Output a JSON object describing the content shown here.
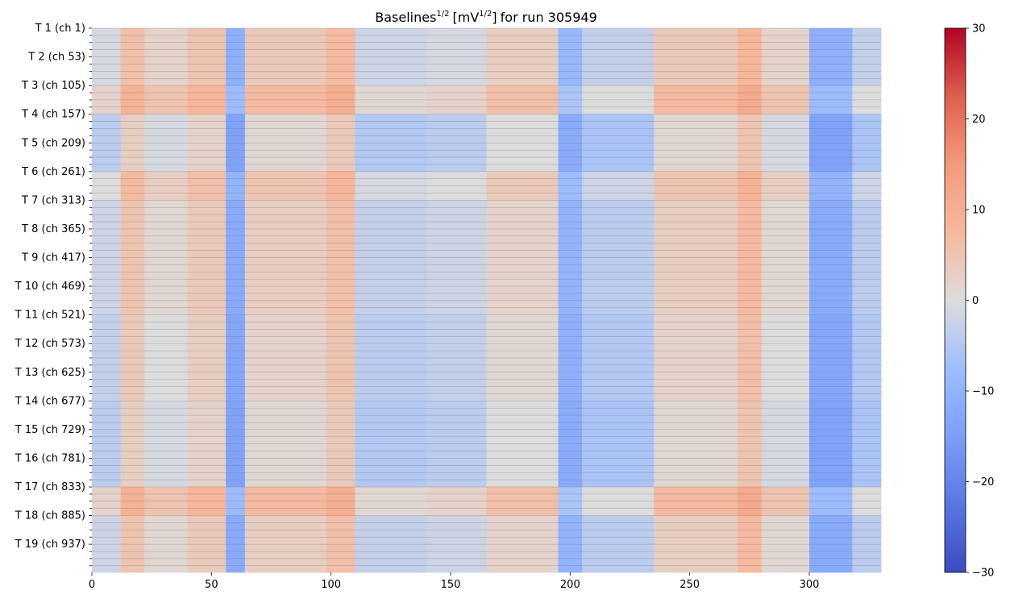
{
  "chart_data": {
    "type": "heatmap",
    "title": {
      "base": "Baselines",
      "base_exp": "1/2",
      "unit_open": "[mV",
      "unit_exp": "1/2",
      "unit_close": "]",
      "rest": "for run 305949"
    },
    "xlabel": "",
    "ylabel": "",
    "x_range": [
      0,
      330
    ],
    "x_ticks": [
      0,
      50,
      100,
      150,
      200,
      250,
      300
    ],
    "y_range": [
      1,
      988
    ],
    "y_tick_labels": [
      {
        "label": "T 1 (ch 1)",
        "channel": 1
      },
      {
        "label": "T 2 (ch 53)",
        "channel": 53
      },
      {
        "label": "T 3 (ch 105)",
        "channel": 105
      },
      {
        "label": "T 4 (ch 157)",
        "channel": 157
      },
      {
        "label": "T 5 (ch 209)",
        "channel": 209
      },
      {
        "label": "T 6 (ch 261)",
        "channel": 261
      },
      {
        "label": "T 7 (ch 313)",
        "channel": 313
      },
      {
        "label": "T 8 (ch 365)",
        "channel": 365
      },
      {
        "label": "T 9 (ch 417)",
        "channel": 417
      },
      {
        "label": "T 10 (ch 469)",
        "channel": 469
      },
      {
        "label": "T 11 (ch 521)",
        "channel": 521
      },
      {
        "label": "T 12 (ch 573)",
        "channel": 573
      },
      {
        "label": "T 13 (ch 625)",
        "channel": 625
      },
      {
        "label": "T 14 (ch 677)",
        "channel": 677
      },
      {
        "label": "T 15 (ch 729)",
        "channel": 729
      },
      {
        "label": "T 16 (ch 781)",
        "channel": 781
      },
      {
        "label": "T 17 (ch 833)",
        "channel": 833
      },
      {
        "label": "T 18 (ch 885)",
        "channel": 885
      },
      {
        "label": "T 19 (ch 937)",
        "channel": 937
      }
    ],
    "colorbar": {
      "colormap": "coolwarm",
      "range": [
        -30,
        30
      ],
      "ticks": [
        30,
        20,
        10,
        0,
        -10,
        -20,
        -30
      ],
      "tick_labels": [
        "30",
        "20",
        "10",
        "0",
        "−10",
        "−20",
        "−30"
      ]
    },
    "approx_pattern": {
      "description_of_values": "value by time bin (x) and channel block; approximate",
      "column_bands": [
        {
          "x": [
            0,
            12
          ],
          "value": -2
        },
        {
          "x": [
            12,
            22
          ],
          "value": 5
        },
        {
          "x": [
            22,
            40
          ],
          "value": 1
        },
        {
          "x": [
            40,
            56
          ],
          "value": 4
        },
        {
          "x": [
            56,
            64
          ],
          "value": -12
        },
        {
          "x": [
            64,
            98
          ],
          "value": 3
        },
        {
          "x": [
            98,
            110
          ],
          "value": 6
        },
        {
          "x": [
            110,
            140
          ],
          "value": -3
        },
        {
          "x": [
            140,
            165
          ],
          "value": -2
        },
        {
          "x": [
            165,
            195
          ],
          "value": 2
        },
        {
          "x": [
            195,
            205
          ],
          "value": -10
        },
        {
          "x": [
            205,
            235
          ],
          "value": -4
        },
        {
          "x": [
            235,
            270
          ],
          "value": 3
        },
        {
          "x": [
            270,
            280
          ],
          "value": 7
        },
        {
          "x": [
            280,
            300
          ],
          "value": 1
        },
        {
          "x": [
            300,
            318
          ],
          "value": -12
        },
        {
          "x": [
            318,
            330
          ],
          "value": -4
        }
      ],
      "row_blocks": [
        {
          "ch": [
            1,
            105
          ],
          "value": 1
        },
        {
          "ch": [
            105,
            157
          ],
          "value": 4
        },
        {
          "ch": [
            157,
            261
          ],
          "value": -2
        },
        {
          "ch": [
            261,
            313
          ],
          "value": 2
        },
        {
          "ch": [
            313,
            521
          ],
          "value": 0
        },
        {
          "ch": [
            521,
            677
          ],
          "value": -1
        },
        {
          "ch": [
            677,
            833
          ],
          "value": -2
        },
        {
          "ch": [
            833,
            885
          ],
          "value": 4
        },
        {
          "ch": [
            885,
            988
          ],
          "value": 0
        }
      ]
    }
  }
}
